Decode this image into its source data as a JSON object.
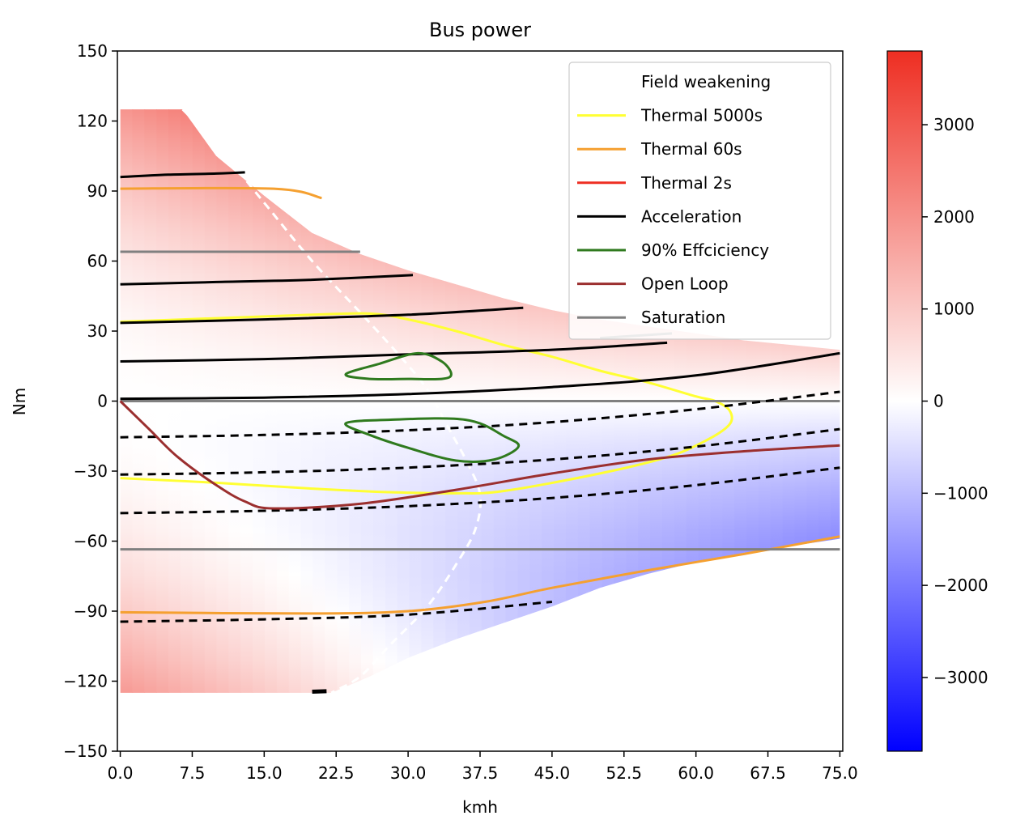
{
  "chart_data": {
    "type": "heatmap",
    "title": "Bus power",
    "xlabel": "kmh",
    "ylabel": "Nm",
    "xlim": [
      -0.3,
      75.3
    ],
    "ylim": [
      -150,
      150
    ],
    "x_ticks": [
      "0.0",
      "7.5",
      "15.0",
      "22.5",
      "30.0",
      "37.5",
      "45.0",
      "52.5",
      "60.0",
      "67.5",
      "75.0"
    ],
    "y_ticks": [
      "150",
      "120",
      "90",
      "60",
      "30",
      "0",
      "−30",
      "−60",
      "−90",
      "−120",
      "−150"
    ],
    "colorbar": {
      "range": [
        -3800,
        3800
      ],
      "ticks": [
        "3000",
        "2000",
        "1000",
        "0",
        "−1000",
        "−2000",
        "−3000"
      ],
      "tick_values": [
        3000,
        2000,
        1000,
        0,
        -1000,
        -2000,
        -3000
      ],
      "colors": {
        "high": "#ee2e22",
        "mid": "#ffffff",
        "low": "#0000ff"
      }
    },
    "grid": false,
    "legend_position": "top-right",
    "legend": [
      {
        "label": "Field weakening",
        "color": "#ffffff",
        "style": "dashed"
      },
      {
        "label": "Thermal 5000s",
        "color": "#ffff33",
        "style": "solid"
      },
      {
        "label": "Thermal 60s",
        "color": "#f5a030",
        "style": "solid"
      },
      {
        "label": "Thermal 2s",
        "color": "#ee2e22",
        "style": "solid"
      },
      {
        "label": "Acceleration",
        "color": "#000000",
        "style": "solid"
      },
      {
        "label": "90% Effciciency",
        "color": "#2f7a1e",
        "style": "solid"
      },
      {
        "label": "Open Loop",
        "color": "#9b2f2f",
        "style": "solid"
      },
      {
        "label": "Saturation",
        "color": "#808080",
        "style": "solid"
      }
    ],
    "operating_envelope": {
      "upper": [
        [
          0,
          125
        ],
        [
          6.5,
          125
        ],
        [
          10,
          105
        ],
        [
          15,
          88
        ],
        [
          20,
          72
        ],
        [
          25,
          63
        ],
        [
          30,
          56
        ],
        [
          35,
          50
        ],
        [
          40,
          44
        ],
        [
          45,
          39
        ],
        [
          50,
          35
        ],
        [
          55,
          32
        ],
        [
          60,
          29
        ],
        [
          65,
          26
        ],
        [
          70,
          24
        ],
        [
          75,
          22
        ]
      ],
      "lower": [
        [
          0,
          -125
        ],
        [
          22,
          -125
        ],
        [
          26,
          -118
        ],
        [
          30,
          -110
        ],
        [
          35,
          -102
        ],
        [
          40,
          -95
        ],
        [
          45,
          -88
        ],
        [
          50,
          -80
        ],
        [
          55,
          -74
        ],
        [
          60,
          -69
        ],
        [
          65,
          -65
        ],
        [
          70,
          -62
        ],
        [
          75,
          -59
        ]
      ]
    },
    "series": [
      {
        "name": "Field weakening",
        "color": "#ffffff",
        "dash": true,
        "points": [
          [
            6.5,
            125
          ],
          [
            10,
            110
          ],
          [
            15,
            85
          ],
          [
            20,
            60
          ],
          [
            25,
            38
          ],
          [
            29,
            20
          ],
          [
            32,
            5
          ],
          [
            34,
            -10
          ],
          [
            36,
            -25
          ],
          [
            37.5,
            -40
          ],
          [
            37,
            -55
          ],
          [
            35,
            -70
          ],
          [
            32,
            -88
          ],
          [
            28,
            -105
          ],
          [
            25,
            -118
          ],
          [
            22,
            -125
          ]
        ]
      },
      {
        "name": "Thermal 5000s",
        "color": "#ffff33",
        "points": [
          [
            0,
            34
          ],
          [
            10,
            35.5
          ],
          [
            20,
            37
          ],
          [
            26,
            37.5
          ],
          [
            30,
            35
          ],
          [
            35,
            30
          ],
          [
            40,
            24
          ],
          [
            45,
            19
          ],
          [
            50,
            13
          ],
          [
            55,
            8
          ],
          [
            60,
            2
          ],
          [
            62,
            0
          ],
          [
            63.5,
            -4
          ],
          [
            63.5,
            -10
          ],
          [
            61,
            -17
          ],
          [
            57,
            -24
          ],
          [
            50,
            -31
          ],
          [
            40,
            -38.5
          ],
          [
            35,
            -39.5
          ],
          [
            28,
            -39
          ],
          [
            20,
            -37.5
          ],
          [
            10,
            -35
          ],
          [
            0,
            -33
          ]
        ]
      },
      {
        "name": "Thermal 60s",
        "color": "#f5a030",
        "points": [
          [
            0,
            91
          ],
          [
            16,
            91
          ],
          [
            21,
            87
          ]
        ]
      },
      {
        "name": "Thermal 60s",
        "color": "#f5a030",
        "points": [
          [
            0,
            -90.5
          ],
          [
            20,
            -91
          ],
          [
            30,
            -90
          ],
          [
            38,
            -86
          ],
          [
            45,
            -80
          ],
          [
            55,
            -72.5
          ],
          [
            65,
            -65.5
          ],
          [
            75,
            -58
          ]
        ]
      },
      {
        "name": "Saturation",
        "color": "#808080",
        "points": [
          [
            0,
            64
          ],
          [
            25,
            64
          ]
        ]
      },
      {
        "name": "Saturation",
        "color": "#808080",
        "points": [
          [
            0,
            0
          ],
          [
            75,
            0
          ]
        ]
      },
      {
        "name": "Saturation",
        "color": "#808080",
        "points": [
          [
            0,
            -63.5
          ],
          [
            75,
            -63.5
          ]
        ]
      },
      {
        "name": "Saturation",
        "color": "#808080",
        "points": [
          [
            50,
            27
          ],
          [
            57.5,
            29
          ]
        ]
      },
      {
        "name": "Acceleration",
        "color": "#000000",
        "points": [
          [
            0,
            96
          ],
          [
            5,
            97
          ],
          [
            10,
            97.5
          ],
          [
            13,
            98
          ]
        ]
      },
      {
        "name": "Acceleration",
        "color": "#000000",
        "points": [
          [
            0,
            50
          ],
          [
            10,
            51
          ],
          [
            20,
            52
          ],
          [
            30.5,
            54
          ]
        ]
      },
      {
        "name": "Acceleration",
        "color": "#000000",
        "points": [
          [
            0,
            33.5
          ],
          [
            15,
            35
          ],
          [
            30,
            37
          ],
          [
            42,
            40
          ]
        ]
      },
      {
        "name": "Acceleration",
        "color": "#000000",
        "points": [
          [
            0,
            17
          ],
          [
            15,
            18
          ],
          [
            30,
            20
          ],
          [
            45,
            22
          ],
          [
            57,
            25
          ]
        ]
      },
      {
        "name": "Acceleration",
        "color": "#000000",
        "points": [
          [
            0,
            1
          ],
          [
            15,
            1.5
          ],
          [
            30,
            3
          ],
          [
            45,
            6
          ],
          [
            60,
            11
          ],
          [
            75,
            20.5
          ]
        ]
      },
      {
        "name": "Acceleration",
        "color": "#000000",
        "dash": true,
        "points": [
          [
            0,
            -15.5
          ],
          [
            15,
            -14.5
          ],
          [
            30,
            -12.5
          ],
          [
            45,
            -9
          ],
          [
            60,
            -3.5
          ],
          [
            75,
            4
          ]
        ]
      },
      {
        "name": "Acceleration",
        "color": "#000000",
        "dash": true,
        "points": [
          [
            0,
            -31.5
          ],
          [
            15,
            -30.5
          ],
          [
            30,
            -28.5
          ],
          [
            45,
            -25
          ],
          [
            60,
            -19.5
          ],
          [
            75,
            -12
          ]
        ]
      },
      {
        "name": "Acceleration",
        "color": "#000000",
        "dash": true,
        "points": [
          [
            0,
            -48
          ],
          [
            15,
            -47
          ],
          [
            30,
            -45
          ],
          [
            45,
            -41.5
          ],
          [
            60,
            -36
          ],
          [
            75,
            -28.5
          ]
        ]
      },
      {
        "name": "Acceleration",
        "color": "#000000",
        "dash": true,
        "points": [
          [
            0,
            -94.5
          ],
          [
            15,
            -93.5
          ],
          [
            30,
            -91.5
          ],
          [
            45,
            -86
          ]
        ]
      },
      {
        "name": "Acceleration",
        "color": "#000000",
        "points": [
          [
            20,
            -124.5
          ],
          [
            21.5,
            -124.3
          ]
        ]
      },
      {
        "name": "90% Effciciency",
        "color": "#2f7a1e",
        "closed": true,
        "points": [
          [
            23.5,
            11.5
          ],
          [
            27,
            16
          ],
          [
            31,
            20.5
          ],
          [
            33.5,
            17
          ],
          [
            34.5,
            11.5
          ],
          [
            33.5,
            9.5
          ],
          [
            30,
            9.5
          ],
          [
            26,
            9.5
          ]
        ]
      },
      {
        "name": "90% Effciciency",
        "color": "#2f7a1e",
        "closed": true,
        "points": [
          [
            23.5,
            -9.5
          ],
          [
            28,
            -8
          ],
          [
            36,
            -8
          ],
          [
            40,
            -15
          ],
          [
            41.5,
            -19.5
          ],
          [
            39,
            -25
          ],
          [
            35,
            -25.5
          ],
          [
            30,
            -20
          ],
          [
            26,
            -14.5
          ]
        ]
      },
      {
        "name": "Open Loop",
        "color": "#9b2f2f",
        "points": [
          [
            0,
            0
          ],
          [
            3,
            -12
          ],
          [
            6,
            -24
          ],
          [
            10,
            -36
          ],
          [
            13,
            -43
          ],
          [
            16,
            -46
          ],
          [
            25,
            -44
          ],
          [
            35,
            -38
          ],
          [
            45,
            -31
          ],
          [
            55,
            -25
          ],
          [
            65,
            -21.5
          ],
          [
            75,
            -19
          ]
        ]
      }
    ]
  }
}
